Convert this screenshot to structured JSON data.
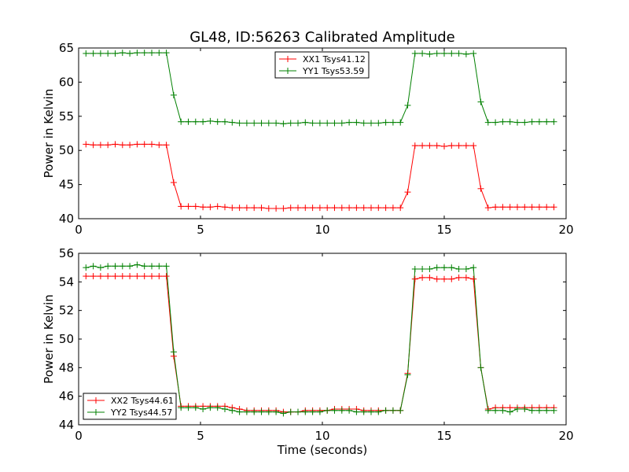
{
  "page_title": "GL48, ID:56263 Calibrated Amplitude",
  "colors": {
    "xx": "#ff0000",
    "yy": "#008000",
    "frame": "#000000"
  },
  "chart_data": [
    {
      "type": "line",
      "title": "GL48, ID:56263 Calibrated Amplitude",
      "xlabel": "",
      "ylabel": "Power in Kelvin",
      "xlim": [
        0,
        20
      ],
      "ylim": [
        40,
        65
      ],
      "xticks": [
        "0",
        "5",
        "10",
        "15",
        "20"
      ],
      "yticks": [
        "40",
        "45",
        "50",
        "55",
        "60",
        "65"
      ],
      "grid": false,
      "legend_position": "top-center",
      "x": [
        0.3,
        0.6,
        0.9,
        1.2,
        1.5,
        1.8,
        2.1,
        2.4,
        2.7,
        3.0,
        3.3,
        3.6,
        3.9,
        4.2,
        4.5,
        4.8,
        5.1,
        5.4,
        5.7,
        6.0,
        6.3,
        6.6,
        6.9,
        7.2,
        7.5,
        7.8,
        8.1,
        8.4,
        8.7,
        9.0,
        9.3,
        9.6,
        9.9,
        10.2,
        10.5,
        10.8,
        11.1,
        11.4,
        11.7,
        12.0,
        12.3,
        12.6,
        12.9,
        13.2,
        13.5,
        13.8,
        14.1,
        14.4,
        14.7,
        15.0,
        15.3,
        15.6,
        15.9,
        16.2,
        16.5,
        16.8,
        17.1,
        17.4,
        17.7,
        18.0,
        18.3,
        18.6,
        18.9,
        19.2,
        19.5
      ],
      "series": [
        {
          "name": "XX1 Tsys41.12",
          "color": "#ff0000",
          "values": [
            50.9,
            50.8,
            50.8,
            50.8,
            50.9,
            50.8,
            50.8,
            50.9,
            50.9,
            50.9,
            50.8,
            50.8,
            45.3,
            41.8,
            41.8,
            41.8,
            41.7,
            41.7,
            41.8,
            41.7,
            41.6,
            41.6,
            41.6,
            41.6,
            41.6,
            41.5,
            41.5,
            41.5,
            41.6,
            41.6,
            41.6,
            41.6,
            41.6,
            41.6,
            41.6,
            41.6,
            41.6,
            41.6,
            41.6,
            41.6,
            41.6,
            41.6,
            41.6,
            41.6,
            43.9,
            50.7,
            50.7,
            50.7,
            50.7,
            50.6,
            50.7,
            50.7,
            50.7,
            50.7,
            44.4,
            41.6,
            41.7,
            41.7,
            41.7,
            41.7,
            41.7,
            41.7,
            41.7,
            41.7,
            41.7
          ]
        },
        {
          "name": "YY1 Tsys53.59",
          "color": "#008000",
          "values": [
            64.2,
            64.2,
            64.2,
            64.2,
            64.2,
            64.3,
            64.2,
            64.3,
            64.3,
            64.3,
            64.3,
            64.3,
            58.1,
            54.2,
            54.2,
            54.2,
            54.2,
            54.3,
            54.2,
            54.2,
            54.1,
            54.0,
            54.0,
            54.0,
            54.0,
            54.0,
            54.0,
            53.9,
            54.0,
            54.0,
            54.1,
            54.0,
            54.0,
            54.0,
            54.0,
            54.0,
            54.1,
            54.1,
            54.0,
            54.0,
            54.0,
            54.1,
            54.1,
            54.1,
            56.6,
            64.2,
            64.2,
            64.1,
            64.2,
            64.2,
            64.2,
            64.2,
            64.1,
            64.2,
            57.1,
            54.1,
            54.1,
            54.2,
            54.2,
            54.1,
            54.1,
            54.2,
            54.2,
            54.2,
            54.2
          ]
        }
      ]
    },
    {
      "type": "line",
      "title": "",
      "xlabel": "Time (seconds)",
      "ylabel": "Power in Kelvin",
      "xlim": [
        0,
        20
      ],
      "ylim": [
        44,
        56
      ],
      "xticks": [
        "0",
        "5",
        "10",
        "15",
        "20"
      ],
      "yticks": [
        "44",
        "46",
        "48",
        "50",
        "52",
        "54",
        "56"
      ],
      "grid": false,
      "legend_position": "bottom-left",
      "x": [
        0.3,
        0.6,
        0.9,
        1.2,
        1.5,
        1.8,
        2.1,
        2.4,
        2.7,
        3.0,
        3.3,
        3.6,
        3.9,
        4.2,
        4.5,
        4.8,
        5.1,
        5.4,
        5.7,
        6.0,
        6.3,
        6.6,
        6.9,
        7.2,
        7.5,
        7.8,
        8.1,
        8.4,
        8.7,
        9.0,
        9.3,
        9.6,
        9.9,
        10.2,
        10.5,
        10.8,
        11.1,
        11.4,
        11.7,
        12.0,
        12.3,
        12.6,
        12.9,
        13.2,
        13.5,
        13.8,
        14.1,
        14.4,
        14.7,
        15.0,
        15.3,
        15.6,
        15.9,
        16.2,
        16.5,
        16.8,
        17.1,
        17.4,
        17.7,
        18.0,
        18.3,
        18.6,
        18.9,
        19.2,
        19.5
      ],
      "series": [
        {
          "name": "XX2 Tsys44.61",
          "color": "#ff0000",
          "values": [
            54.4,
            54.4,
            54.4,
            54.4,
            54.4,
            54.4,
            54.4,
            54.4,
            54.4,
            54.4,
            54.4,
            54.4,
            48.8,
            45.3,
            45.3,
            45.3,
            45.3,
            45.3,
            45.3,
            45.3,
            45.2,
            45.1,
            45.0,
            45.0,
            45.0,
            45.0,
            45.0,
            44.9,
            44.9,
            44.9,
            45.0,
            45.0,
            45.0,
            45.0,
            45.1,
            45.1,
            45.1,
            45.1,
            45.0,
            45.0,
            45.0,
            45.0,
            45.0,
            45.0,
            47.6,
            54.2,
            54.3,
            54.3,
            54.2,
            54.2,
            54.2,
            54.3,
            54.3,
            54.2,
            48.0,
            45.1,
            45.2,
            45.2,
            45.2,
            45.2,
            45.2,
            45.2,
            45.2,
            45.2,
            45.2
          ]
        },
        {
          "name": "YY2 Tsys44.57",
          "color": "#008000",
          "values": [
            55.0,
            55.1,
            55.0,
            55.1,
            55.1,
            55.1,
            55.1,
            55.2,
            55.1,
            55.1,
            55.1,
            55.1,
            49.1,
            45.2,
            45.2,
            45.2,
            45.1,
            45.2,
            45.2,
            45.1,
            45.0,
            44.9,
            44.9,
            44.9,
            44.9,
            44.9,
            44.9,
            44.8,
            44.9,
            44.9,
            44.9,
            44.9,
            44.9,
            45.0,
            45.0,
            45.0,
            45.0,
            44.9,
            44.9,
            44.9,
            44.9,
            45.0,
            45.0,
            45.0,
            47.5,
            54.9,
            54.9,
            54.9,
            55.0,
            55.0,
            55.0,
            54.9,
            54.9,
            55.0,
            48.0,
            45.0,
            45.0,
            45.0,
            44.9,
            45.1,
            45.1,
            45.0,
            45.0,
            45.0,
            45.0
          ]
        }
      ]
    }
  ]
}
